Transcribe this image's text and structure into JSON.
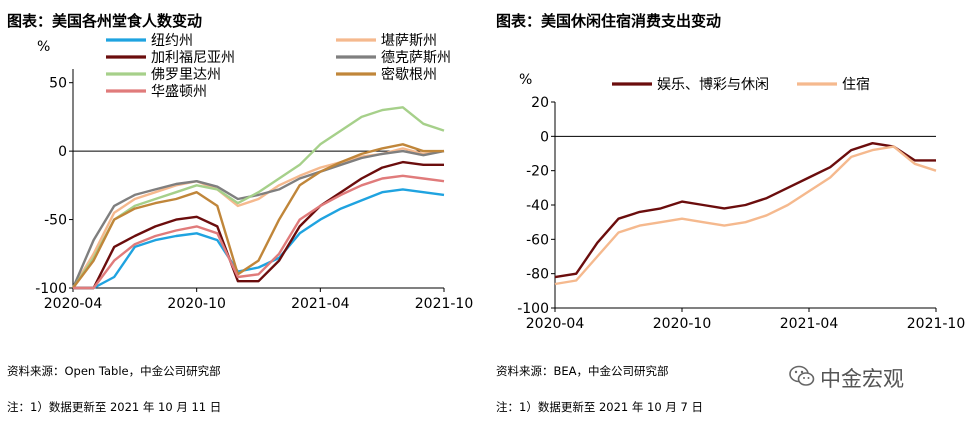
{
  "left": {
    "title": "图表：美国各州堂食人数变动",
    "source": "资料来源：Open Table，中金公司研究部",
    "note": "注：1）数据更新至 2021 年 10 月 11 日"
  },
  "right": {
    "title": "图表：美国休闲住宿消费支出变动",
    "source": "资料来源：BEA，中金公司研究部",
    "note": "注：1）数据更新至 2021 年 10 月 7 日"
  },
  "watermark": "中金宏观",
  "chart_data": [
    {
      "type": "line",
      "ylabel": "%",
      "ylim": [
        -100,
        60
      ],
      "yticks": [
        50,
        0,
        -50,
        -100
      ],
      "xlim": [
        "2020-04",
        "2021-10"
      ],
      "xtick_labels": [
        "2020-04",
        "2020-10",
        "2021-04",
        "2021-10"
      ],
      "legend": "top-left, two columns",
      "series": [
        {
          "name": "纽约州",
          "color": "#1fa3e0",
          "x": [
            "2020-04",
            "2020-05",
            "2020-06",
            "2020-07",
            "2020-08",
            "2020-09",
            "2020-10",
            "2020-11",
            "2020-12",
            "2021-01",
            "2021-02",
            "2021-03",
            "2021-04",
            "2021-05",
            "2021-06",
            "2021-07",
            "2021-08",
            "2021-09",
            "2021-10"
          ],
          "values": [
            -100,
            -100,
            -92,
            -70,
            -65,
            -62,
            -60,
            -65,
            -88,
            -85,
            -78,
            -60,
            -50,
            -42,
            -36,
            -30,
            -28,
            -30,
            -32
          ]
        },
        {
          "name": "堪萨斯州",
          "color": "#f5b98e",
          "x": [
            "2020-04",
            "2020-05",
            "2020-06",
            "2020-07",
            "2020-08",
            "2020-09",
            "2020-10",
            "2020-11",
            "2020-12",
            "2021-01",
            "2021-02",
            "2021-03",
            "2021-04",
            "2021-05",
            "2021-06",
            "2021-07",
            "2021-08",
            "2021-09",
            "2021-10"
          ],
          "values": [
            -100,
            -75,
            -45,
            -35,
            -30,
            -25,
            -22,
            -28,
            -40,
            -35,
            -25,
            -18,
            -12,
            -8,
            -4,
            -2,
            2,
            -2,
            0
          ]
        },
        {
          "name": "加利福尼亚州",
          "color": "#6b0d0d",
          "x": [
            "2020-04",
            "2020-05",
            "2020-06",
            "2020-07",
            "2020-08",
            "2020-09",
            "2020-10",
            "2020-11",
            "2020-12",
            "2021-01",
            "2021-02",
            "2021-03",
            "2021-04",
            "2021-05",
            "2021-06",
            "2021-07",
            "2021-08",
            "2021-09",
            "2021-10"
          ],
          "values": [
            -100,
            -100,
            -70,
            -62,
            -55,
            -50,
            -48,
            -55,
            -95,
            -95,
            -80,
            -55,
            -40,
            -30,
            -20,
            -12,
            -8,
            -10,
            -10
          ]
        },
        {
          "name": "德克萨斯州",
          "color": "#7f7f7f",
          "x": [
            "2020-04",
            "2020-05",
            "2020-06",
            "2020-07",
            "2020-08",
            "2020-09",
            "2020-10",
            "2020-11",
            "2020-12",
            "2021-01",
            "2021-02",
            "2021-03",
            "2021-04",
            "2021-05",
            "2021-06",
            "2021-07",
            "2021-08",
            "2021-09",
            "2021-10"
          ],
          "values": [
            -100,
            -65,
            -40,
            -32,
            -28,
            -24,
            -22,
            -26,
            -35,
            -32,
            -28,
            -20,
            -15,
            -10,
            -5,
            -2,
            0,
            -3,
            0
          ]
        },
        {
          "name": "佛罗里达州",
          "color": "#a6d08a",
          "x": [
            "2020-04",
            "2020-05",
            "2020-06",
            "2020-07",
            "2020-08",
            "2020-09",
            "2020-10",
            "2020-11",
            "2020-12",
            "2021-01",
            "2021-02",
            "2021-03",
            "2021-04",
            "2021-05",
            "2021-06",
            "2021-07",
            "2021-08",
            "2021-09",
            "2021-10"
          ],
          "values": [
            -100,
            -78,
            -50,
            -40,
            -35,
            -30,
            -25,
            -28,
            -38,
            -30,
            -20,
            -10,
            5,
            15,
            25,
            30,
            32,
            20,
            15
          ]
        },
        {
          "name": "密歇根州",
          "color": "#c0863a",
          "x": [
            "2020-04",
            "2020-05",
            "2020-06",
            "2020-07",
            "2020-08",
            "2020-09",
            "2020-10",
            "2020-11",
            "2020-12",
            "2021-01",
            "2021-02",
            "2021-03",
            "2021-04",
            "2021-05",
            "2021-06",
            "2021-07",
            "2021-08",
            "2021-09",
            "2021-10"
          ],
          "values": [
            -100,
            -80,
            -50,
            -42,
            -38,
            -35,
            -30,
            -40,
            -90,
            -80,
            -50,
            -25,
            -15,
            -8,
            -2,
            2,
            5,
            0,
            0
          ]
        },
        {
          "name": "华盛顿州",
          "color": "#e07b7b",
          "x": [
            "2020-04",
            "2020-05",
            "2020-06",
            "2020-07",
            "2020-08",
            "2020-09",
            "2020-10",
            "2020-11",
            "2020-12",
            "2021-01",
            "2021-02",
            "2021-03",
            "2021-04",
            "2021-05",
            "2021-06",
            "2021-07",
            "2021-08",
            "2021-09",
            "2021-10"
          ],
          "values": [
            -100,
            -100,
            -80,
            -68,
            -62,
            -58,
            -55,
            -60,
            -92,
            -90,
            -75,
            -50,
            -40,
            -32,
            -25,
            -20,
            -18,
            -20,
            -22
          ]
        }
      ]
    },
    {
      "type": "line",
      "ylabel": "%",
      "ylim": [
        -100,
        20
      ],
      "yticks": [
        20,
        0,
        -20,
        -40,
        -60,
        -80,
        -100
      ],
      "xlim": [
        "2020-04",
        "2021-10"
      ],
      "xtick_labels": [
        "2020-04",
        "2020-10",
        "2021-04",
        "2021-10"
      ],
      "legend": "top",
      "series": [
        {
          "name": "娱乐、博彩与休闲",
          "color": "#6b0d0d",
          "x": [
            "2020-04",
            "2020-05",
            "2020-06",
            "2020-07",
            "2020-08",
            "2020-09",
            "2020-10",
            "2020-11",
            "2020-12",
            "2021-01",
            "2021-02",
            "2021-03",
            "2021-04",
            "2021-05",
            "2021-06",
            "2021-07",
            "2021-08",
            "2021-09",
            "2021-10"
          ],
          "values": [
            -82,
            -80,
            -62,
            -48,
            -44,
            -42,
            -38,
            -40,
            -42,
            -40,
            -36,
            -30,
            -24,
            -18,
            -8,
            -4,
            -6,
            -14,
            -14
          ]
        },
        {
          "name": "住宿",
          "color": "#f5b98e",
          "x": [
            "2020-04",
            "2020-05",
            "2020-06",
            "2020-07",
            "2020-08",
            "2020-09",
            "2020-10",
            "2020-11",
            "2020-12",
            "2021-01",
            "2021-02",
            "2021-03",
            "2021-04",
            "2021-05",
            "2021-06",
            "2021-07",
            "2021-08",
            "2021-09",
            "2021-10"
          ],
          "values": [
            -86,
            -84,
            -70,
            -56,
            -52,
            -50,
            -48,
            -50,
            -52,
            -50,
            -46,
            -40,
            -32,
            -24,
            -12,
            -8,
            -6,
            -16,
            -20
          ]
        }
      ]
    }
  ]
}
